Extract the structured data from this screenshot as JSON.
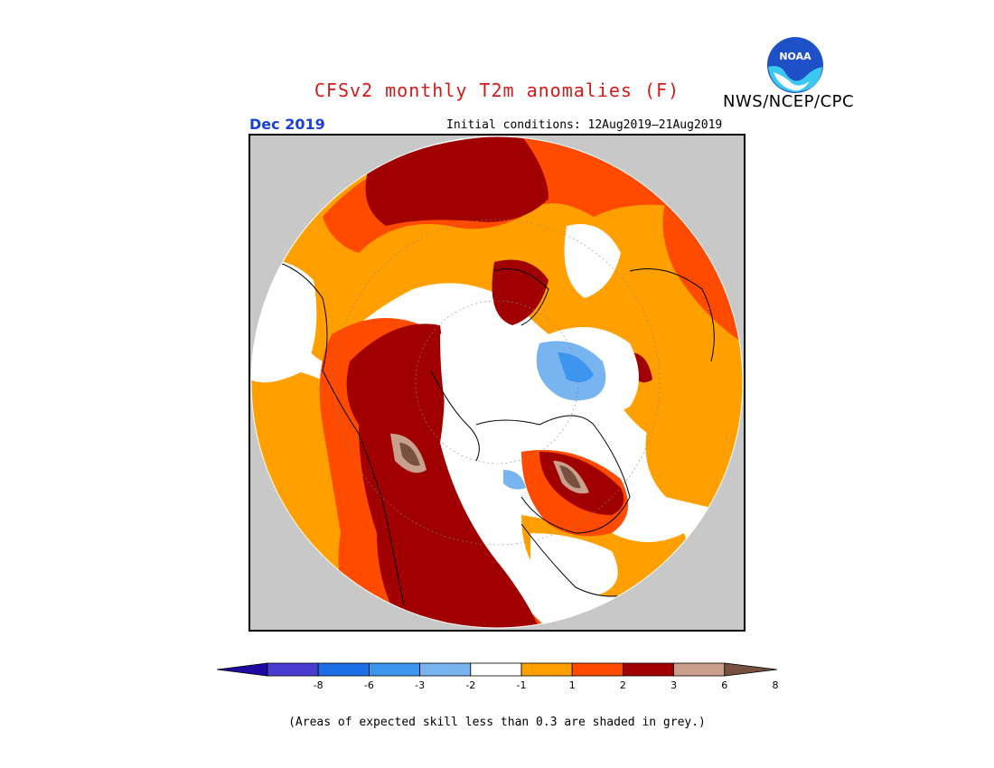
{
  "title": "CFSv2 monthly T2m anomalies (F)",
  "agency": "NWS/NCEP/CPC",
  "logo_text": "NOAA",
  "target_month": "Dec 2019",
  "initial_conditions": "Initial conditions: 12Aug2019–21Aug2019",
  "footnote": "(Areas of expected skill less than 0.3 are shaded in grey.)",
  "colorbar": {
    "labels": [
      "-8",
      "-6",
      "-3",
      "-2",
      "-1",
      "1",
      "2",
      "3",
      "6",
      "8"
    ],
    "colors": [
      "#1e0aa0",
      "#4a3cd0",
      "#1e6ee6",
      "#3c96f0",
      "#78b4f0",
      "#ffffff",
      "#ffa000",
      "#ff4b00",
      "#a00000",
      "#c8a08c",
      "#785040"
    ]
  },
  "map_colors": {
    "grey_skill": "#c8c8c8",
    "neutral": "#ffffff",
    "warm1": "#ffa000",
    "warm2": "#ff4b00",
    "warm3": "#a00000",
    "warm4": "#c8a08c",
    "warm5": "#785040",
    "cool1": "#78b4f0",
    "cool2": "#3c96f0"
  }
}
